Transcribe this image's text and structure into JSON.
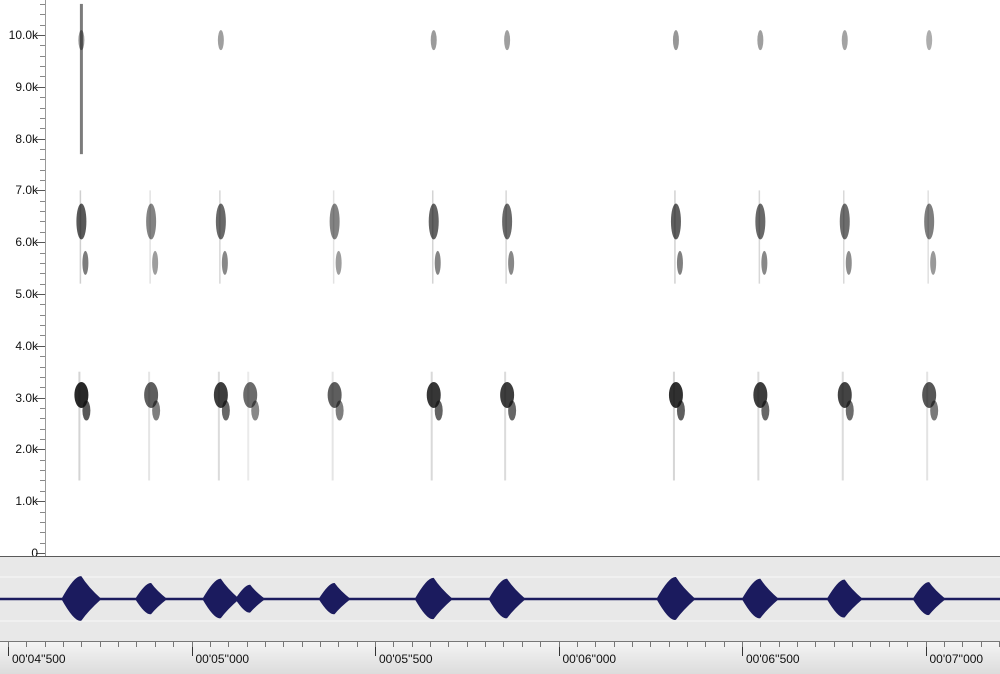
{
  "frequency_axis": {
    "labels": [
      "0",
      "1.0k",
      "2.0k",
      "3.0k",
      "4.0k",
      "5.0k",
      "6.0k",
      "7.0k",
      "8.0k",
      "9.0k",
      "10.0k"
    ],
    "max_khz": 10.7
  },
  "time_axis": {
    "labels": [
      "00'04''500",
      "00'05''000",
      "00'05''500",
      "00'06''000",
      "00'06''500",
      "00'07''000"
    ]
  },
  "colors": {
    "waveform": "#1b1b5e",
    "spectrogram_ink": "#111111",
    "waveform_background": "#e8e8e8"
  },
  "calls": [
    {
      "t": 4.7,
      "strength": 1.0
    },
    {
      "t": 4.89,
      "strength": 0.6
    },
    {
      "t": 5.08,
      "strength": 0.85
    },
    {
      "t": 5.16,
      "strength": 0.5
    },
    {
      "t": 5.39,
      "strength": 0.6
    },
    {
      "t": 5.66,
      "strength": 0.9
    },
    {
      "t": 5.86,
      "strength": 0.85
    },
    {
      "t": 6.32,
      "strength": 0.95
    },
    {
      "t": 6.55,
      "strength": 0.85
    },
    {
      "t": 6.78,
      "strength": 0.8
    },
    {
      "t": 7.01,
      "strength": 0.65
    }
  ]
}
